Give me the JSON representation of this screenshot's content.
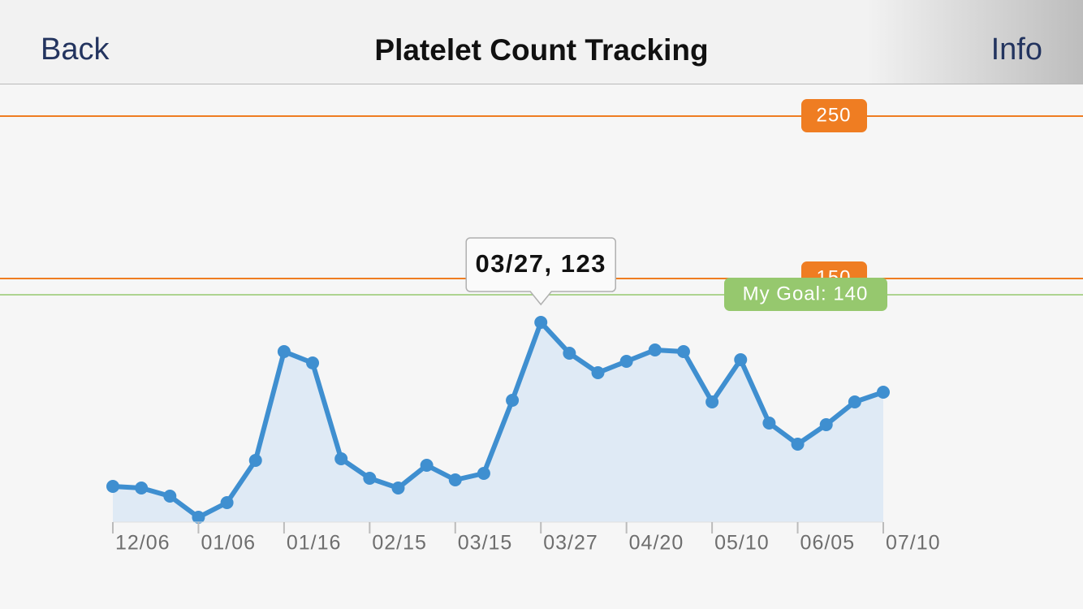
{
  "nav": {
    "back": "Back",
    "title": "Platelet Count Tracking",
    "info": "Info"
  },
  "chart_data": {
    "type": "area",
    "categories": [
      "12/06",
      null,
      null,
      "01/06",
      null,
      null,
      "01/16",
      null,
      null,
      "02/15",
      null,
      null,
      "03/15",
      null,
      null,
      "03/27",
      null,
      null,
      "04/20",
      null,
      null,
      "05/10",
      null,
      null,
      "06/05",
      null,
      null,
      "07/10"
    ],
    "values": [
      22,
      21,
      16,
      3,
      12,
      38,
      105,
      98,
      39,
      27,
      21,
      35,
      26,
      30,
      75,
      123,
      104,
      92,
      99,
      106,
      105,
      74,
      100,
      61,
      48,
      60,
      74,
      80
    ],
    "color": "#3f8fd0",
    "ylim": [
      0,
      269
    ],
    "reference_lines": [
      250,
      150
    ],
    "reference_color": "#ef7d22",
    "goal": {
      "value": 140,
      "label": "My Goal: 140"
    },
    "goal_color": "#96c86e",
    "annotation": {
      "index": 15,
      "text": "03/27, 123"
    }
  }
}
